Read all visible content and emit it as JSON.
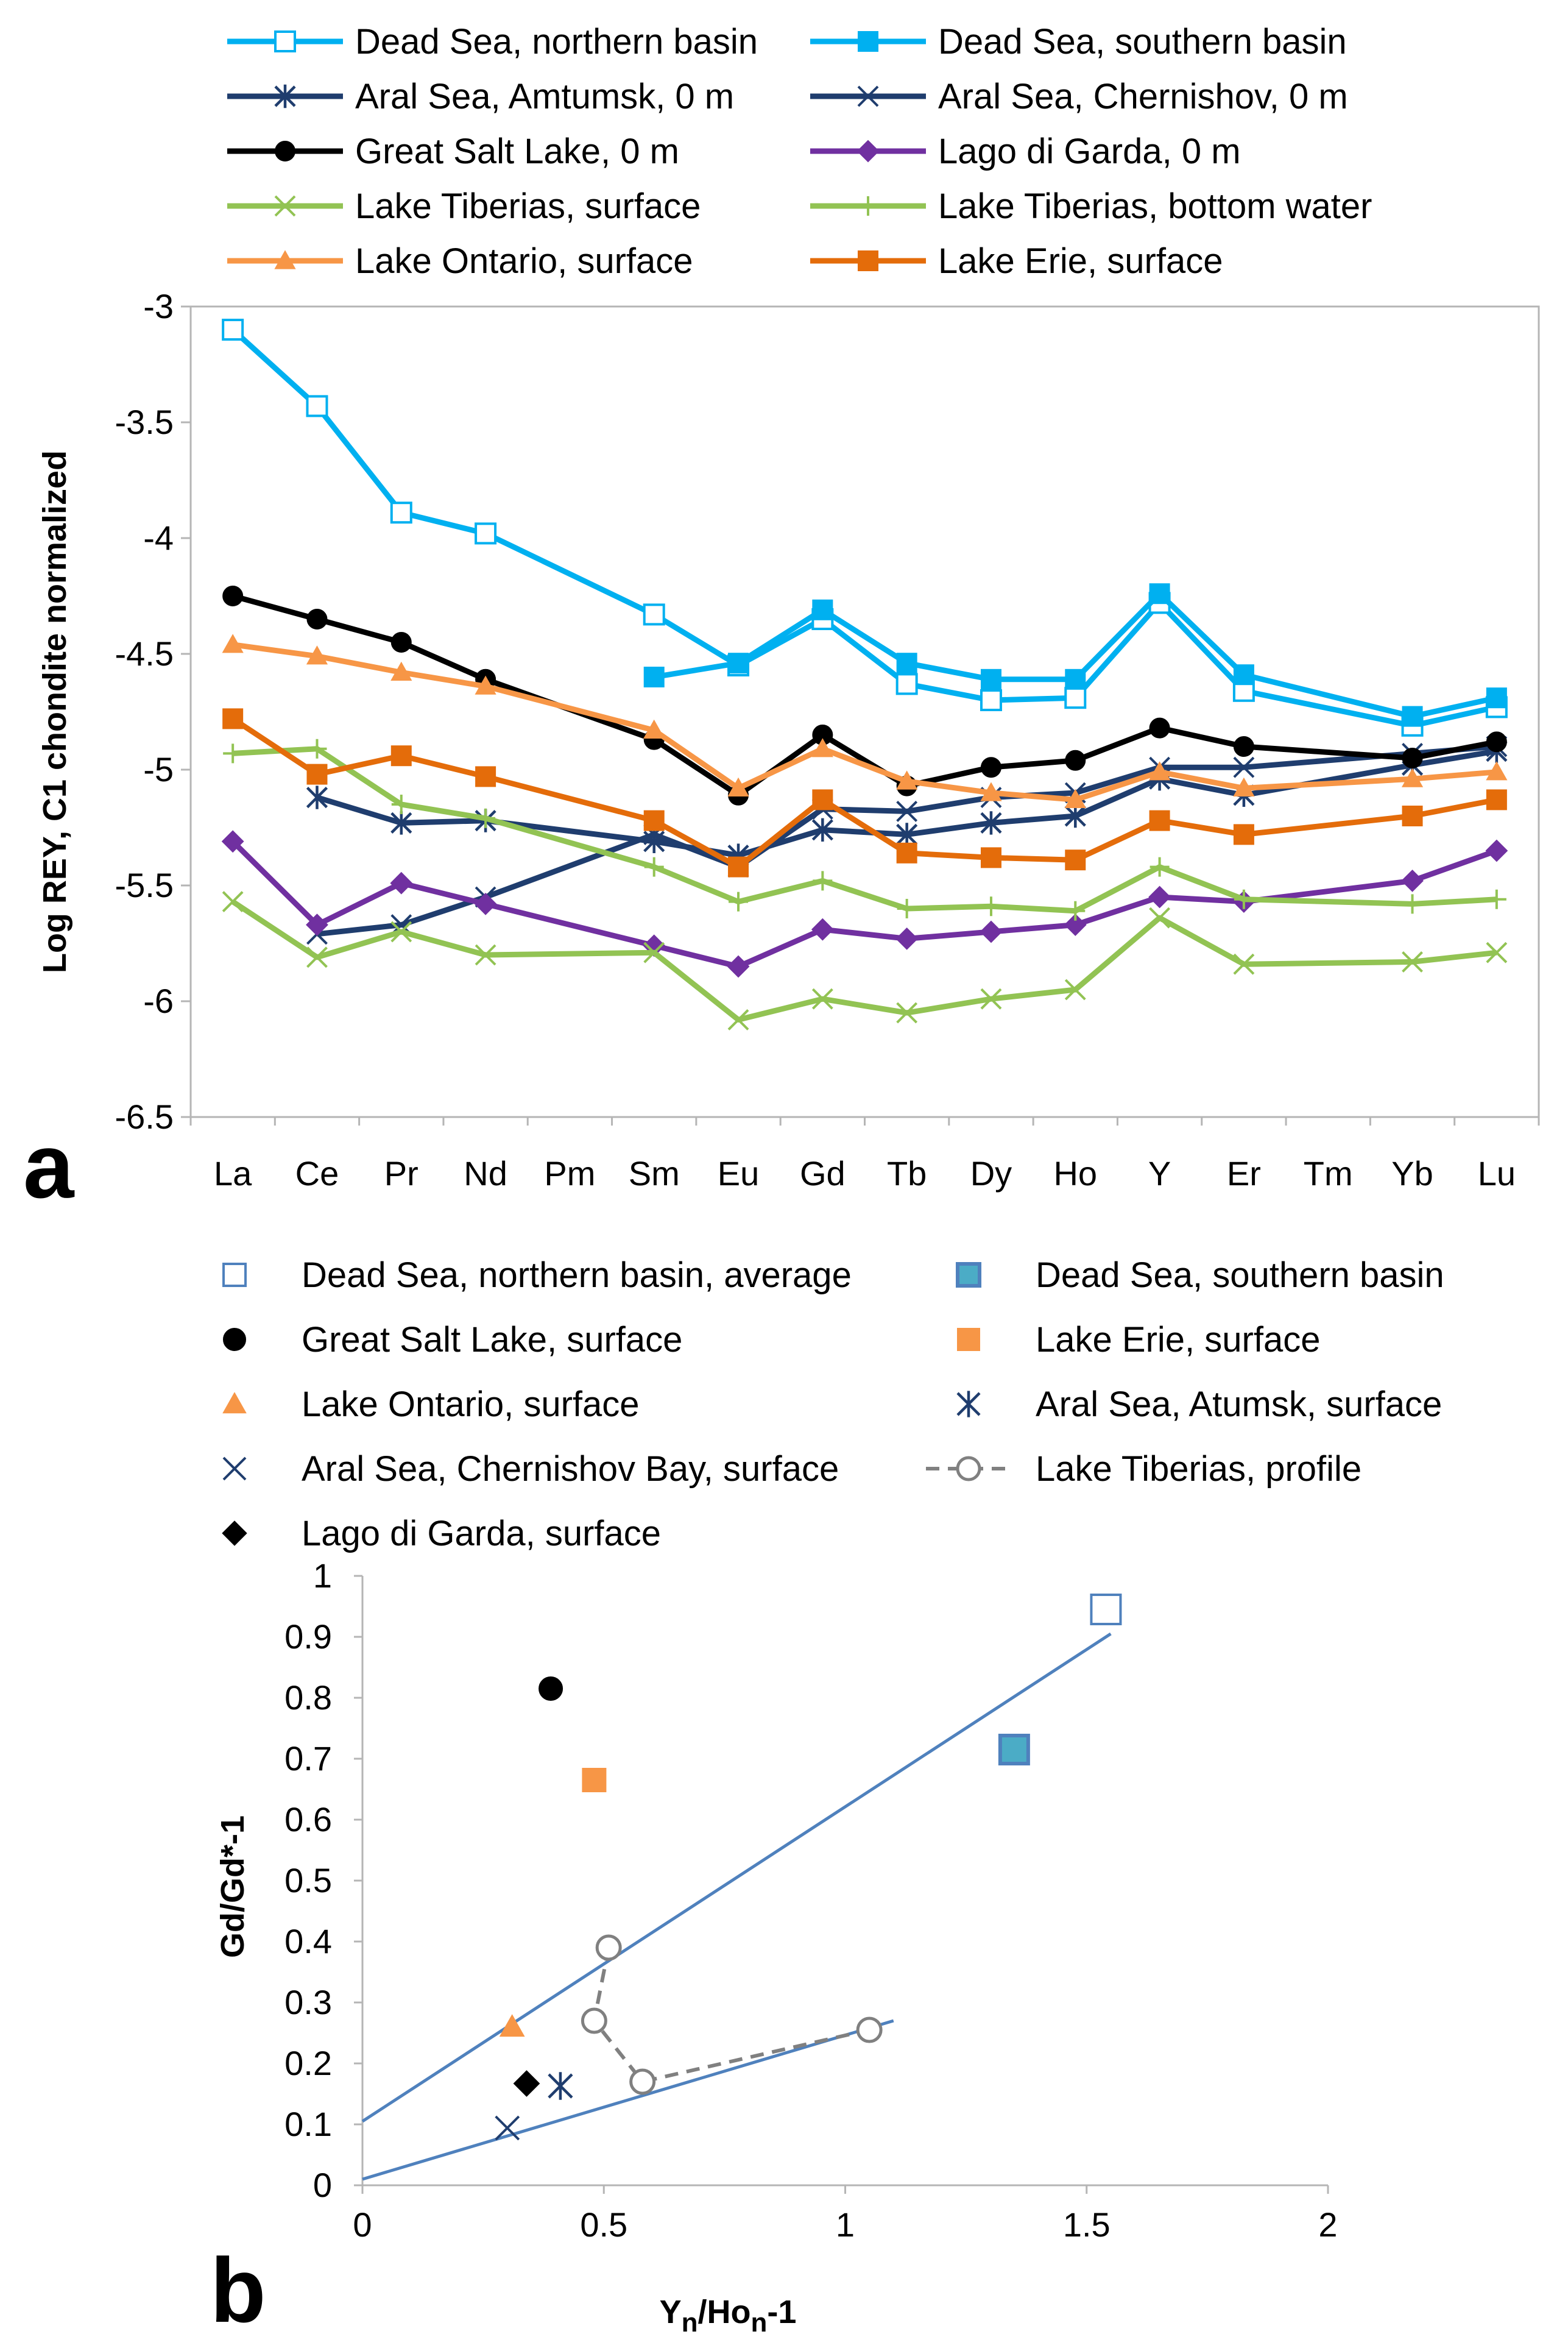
{
  "chart_data": [
    {
      "panel": "a",
      "type": "line",
      "panel_label": "a",
      "title": "",
      "xlabel": "",
      "ylabel": "Log REY, C1 chondite normalized",
      "ylim": [
        -6.5,
        -3
      ],
      "yticks": [
        -3,
        -3.5,
        -4,
        -4.5,
        -5,
        -5.5,
        -6,
        -6.5
      ],
      "ytick_labels": [
        "-3",
        "-3.5",
        "-4",
        "-4.5",
        "-5",
        "-5.5",
        "-6",
        "-6.5"
      ],
      "categories": [
        "La",
        "Ce",
        "Pr",
        "Nd",
        "Pm",
        "Sm",
        "Eu",
        "Gd",
        "Tb",
        "Dy",
        "Ho",
        "Y",
        "Er",
        "Tm",
        "Yb",
        "Lu"
      ],
      "legend_position": "top",
      "series": [
        {
          "name": "Dead Sea, northern basin",
          "color": "#00b0f0",
          "marker": "square-open",
          "values": [
            -3.1,
            -3.43,
            -3.89,
            -3.98,
            null,
            -4.33,
            -4.55,
            -4.35,
            -4.63,
            -4.7,
            -4.69,
            -4.28,
            -4.66,
            null,
            -4.81,
            -4.73
          ]
        },
        {
          "name": "Dead Sea, southern basin",
          "color": "#00b0f0",
          "marker": "square-filled",
          "values": [
            null,
            null,
            null,
            null,
            null,
            -4.6,
            -4.54,
            -4.31,
            -4.54,
            -4.61,
            -4.61,
            -4.24,
            -4.59,
            null,
            -4.77,
            -4.69
          ]
        },
        {
          "name": "Aral Sea, Amtumsk, 0 m",
          "color": "#1f3d6e",
          "marker": "asterisk",
          "values": [
            null,
            -5.12,
            -5.23,
            -5.22,
            null,
            -5.31,
            -5.37,
            -5.26,
            -5.28,
            -5.23,
            -5.2,
            -5.04,
            -5.11,
            null,
            -4.98,
            -4.92
          ]
        },
        {
          "name": "Aral Sea, Chernishov, 0 m",
          "color": "#1f3d6e",
          "marker": "x",
          "values": [
            null,
            -5.71,
            -5.67,
            -5.55,
            null,
            -5.28,
            -5.42,
            -5.17,
            -5.18,
            -5.12,
            -5.1,
            -4.99,
            -4.99,
            null,
            -4.93,
            -4.9
          ]
        },
        {
          "name": "Great Salt Lake, 0 m",
          "color": "#000000",
          "marker": "circle-filled",
          "values": [
            -4.25,
            -4.35,
            -4.45,
            -4.61,
            null,
            -4.87,
            -5.11,
            -4.85,
            -5.07,
            -4.99,
            -4.96,
            -4.82,
            -4.9,
            null,
            -4.95,
            -4.88
          ]
        },
        {
          "name": "Lago di Garda, 0 m",
          "color": "#7030a0",
          "marker": "diamond-filled",
          "values": [
            -5.31,
            -5.67,
            -5.49,
            -5.58,
            null,
            -5.76,
            -5.85,
            -5.69,
            -5.73,
            -5.7,
            -5.67,
            -5.55,
            -5.57,
            null,
            -5.48,
            -5.35
          ]
        },
        {
          "name": "Lake Tiberias, surface",
          "color": "#92c353",
          "marker": "x",
          "values": [
            -5.57,
            -5.81,
            -5.7,
            -5.8,
            null,
            -5.79,
            -6.08,
            -5.99,
            -6.05,
            -5.99,
            -5.95,
            -5.64,
            -5.84,
            null,
            -5.83,
            -5.79
          ]
        },
        {
          "name": "Lake Tiberias, bottom water",
          "color": "#92c353",
          "marker": "plus",
          "values": [
            -4.93,
            -4.91,
            -5.15,
            -5.21,
            null,
            -5.42,
            -5.57,
            -5.48,
            -5.6,
            -5.59,
            -5.61,
            -5.42,
            -5.56,
            null,
            -5.58,
            -5.56
          ]
        },
        {
          "name": "Lake Ontario, surface",
          "color": "#f79646",
          "marker": "triangle-filled",
          "values": [
            -4.46,
            -4.51,
            -4.58,
            -4.64,
            null,
            -4.83,
            -5.08,
            -4.91,
            -5.05,
            -5.1,
            -5.13,
            -5.01,
            -5.08,
            null,
            -5.04,
            -5.01
          ]
        },
        {
          "name": "Lake Erie, surface",
          "color": "#e46c0a",
          "marker": "square-filled",
          "values": [
            -4.78,
            -5.02,
            -4.94,
            -5.03,
            null,
            -5.22,
            -5.42,
            -5.13,
            -5.36,
            -5.38,
            -5.39,
            -5.22,
            -5.28,
            null,
            -5.2,
            -5.13
          ]
        }
      ]
    },
    {
      "panel": "b",
      "type": "scatter",
      "panel_label": "b",
      "title": "",
      "xlabel_main": "Y",
      "xlabel_sub1": "n",
      "xlabel_mid": "/Ho",
      "xlabel_sub2": "n",
      "xlabel_end": "-1",
      "ylabel": "Gd/Gd*-1",
      "xlim": [
        0,
        2
      ],
      "ylim": [
        0,
        1
      ],
      "xticks": [
        0,
        0.5,
        1,
        1.5,
        2
      ],
      "xtick_labels": [
        "0",
        "0.5",
        "1",
        "1.5",
        "2"
      ],
      "yticks": [
        0,
        0.1,
        0.2,
        0.3,
        0.4,
        0.5,
        0.6,
        0.7,
        0.8,
        0.9,
        1
      ],
      "ytick_labels": [
        "0",
        "0.1",
        "0.2",
        "0.3",
        "0.4",
        "0.5",
        "0.6",
        "0.7",
        "0.8",
        "0.9",
        "1"
      ],
      "legend_position": "top",
      "series": [
        {
          "name": "Dead Sea, northern basin, average",
          "color": "#4f81bd",
          "marker": "square-open",
          "x": [
            1.54
          ],
          "y": [
            0.945
          ]
        },
        {
          "name": "Dead Sea, southern basin",
          "color": "#4bacc6",
          "marker": "square-filled-outlined",
          "x": [
            1.35
          ],
          "y": [
            0.715
          ]
        },
        {
          "name": "Great Salt Lake, surface",
          "color": "#000000",
          "marker": "circle-filled",
          "x": [
            0.39
          ],
          "y": [
            0.815
          ]
        },
        {
          "name": "Lake Erie, surface",
          "color": "#f79646",
          "marker": "square-filled",
          "x": [
            0.48
          ],
          "y": [
            0.665
          ]
        },
        {
          "name": "Lake Ontario, surface",
          "color": "#f79646",
          "marker": "triangle-filled",
          "x": [
            0.31
          ],
          "y": [
            0.26
          ]
        },
        {
          "name": "Aral Sea, Atumsk, surface",
          "color": "#1f3d6e",
          "marker": "asterisk",
          "x": [
            0.41
          ],
          "y": [
            0.163
          ]
        },
        {
          "name": "Aral Sea, Chernishov Bay, surface",
          "color": "#1f3d6e",
          "marker": "x",
          "x": [
            0.3
          ],
          "y": [
            0.094
          ]
        },
        {
          "name": "Lake Tiberias, profile",
          "color": "#808080",
          "marker": "circle-open-dashed",
          "x": [
            0.51,
            0.48,
            0.58,
            1.05
          ],
          "y": [
            0.39,
            0.27,
            0.17,
            0.255
          ]
        },
        {
          "name": "Lago di Garda, surface",
          "color": "#000000",
          "marker": "diamond-filled",
          "x": [
            0.34
          ],
          "y": [
            0.167
          ]
        }
      ],
      "trend_lines": [
        {
          "color": "#4f81bd",
          "x": [
            0,
            1.55
          ],
          "y": [
            0.105,
            0.905
          ]
        },
        {
          "color": "#4f81bd",
          "x": [
            0,
            1.1
          ],
          "y": [
            0.01,
            0.27
          ]
        }
      ]
    }
  ]
}
